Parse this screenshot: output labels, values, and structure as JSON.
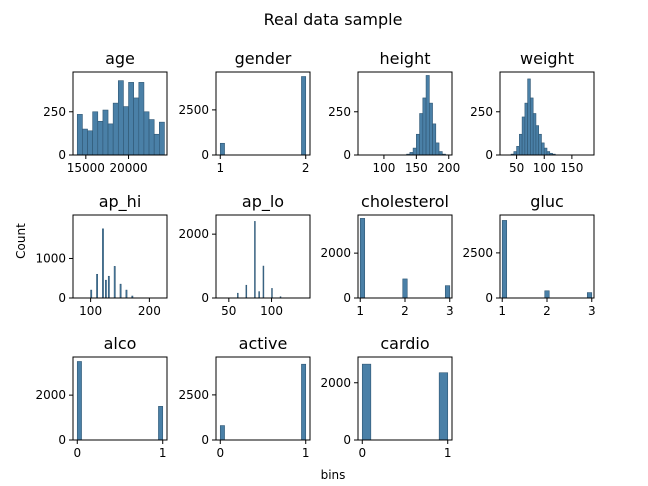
{
  "chart_data": {
    "type": "bar",
    "title": "Real data sample",
    "xlabel": "bins",
    "ylabel": "Count",
    "grid": false,
    "panels": [
      {
        "title": "age",
        "xlim": [
          13500,
          24500
        ],
        "ylim": [
          0,
          480
        ],
        "xticks": [
          {
            "v": 15000,
            "label": "15000"
          },
          {
            "v": 20000,
            "label": "20000"
          }
        ],
        "yticks": [
          {
            "v": 0,
            "label": "0"
          },
          {
            "v": 250,
            "label": "250"
          }
        ],
        "bins": [
          [
            14000,
            14600,
            235
          ],
          [
            14600,
            15200,
            150
          ],
          [
            15200,
            15800,
            140
          ],
          [
            15800,
            16400,
            250
          ],
          [
            16400,
            17000,
            195
          ],
          [
            17000,
            17600,
            260
          ],
          [
            17600,
            18200,
            180
          ],
          [
            18200,
            18800,
            300
          ],
          [
            18800,
            19400,
            430
          ],
          [
            19400,
            20000,
            280
          ],
          [
            20000,
            20600,
            420
          ],
          [
            20600,
            21200,
            330
          ],
          [
            21200,
            21800,
            420
          ],
          [
            21800,
            22400,
            250
          ],
          [
            22400,
            23000,
            205
          ],
          [
            23000,
            23600,
            120
          ],
          [
            23600,
            24200,
            190
          ]
        ]
      },
      {
        "title": "gender",
        "xlim": [
          0.95,
          2.05
        ],
        "ylim": [
          0,
          4600
        ],
        "xticks": [
          {
            "v": 1,
            "label": "1"
          },
          {
            "v": 2,
            "label": "2"
          }
        ],
        "yticks": [
          {
            "v": 0,
            "label": "0"
          },
          {
            "v": 2500,
            "label": "2500"
          }
        ],
        "bins": [
          [
            1.0,
            1.05,
            650
          ],
          [
            1.95,
            2.0,
            4350
          ]
        ]
      },
      {
        "title": "height",
        "xlim": [
          60,
          205
        ],
        "ylim": [
          0,
          480
        ],
        "xticks": [
          {
            "v": 100,
            "label": "100"
          },
          {
            "v": 150,
            "label": "150"
          },
          {
            "v": 200,
            "label": "200"
          }
        ],
        "yticks": [
          {
            "v": 0,
            "label": "0"
          },
          {
            "v": 250,
            "label": "250"
          }
        ],
        "bins": [
          [
            135,
            140,
            5
          ],
          [
            140,
            145,
            15
          ],
          [
            145,
            150,
            40
          ],
          [
            150,
            155,
            120
          ],
          [
            155,
            160,
            240
          ],
          [
            160,
            165,
            330
          ],
          [
            165,
            170,
            460
          ],
          [
            170,
            175,
            300
          ],
          [
            175,
            180,
            180
          ],
          [
            180,
            185,
            70
          ],
          [
            185,
            190,
            20
          ],
          [
            190,
            195,
            5
          ]
        ]
      },
      {
        "title": "weight",
        "xlim": [
          20,
          190
        ],
        "ylim": [
          0,
          480
        ],
        "xticks": [
          {
            "v": 50,
            "label": "50"
          },
          {
            "v": 100,
            "label": "100"
          },
          {
            "v": 150,
            "label": "150"
          }
        ],
        "yticks": [
          {
            "v": 0,
            "label": "0"
          },
          {
            "v": 250,
            "label": "250"
          }
        ],
        "bins": [
          [
            40,
            45,
            5
          ],
          [
            45,
            50,
            20
          ],
          [
            50,
            55,
            50
          ],
          [
            55,
            60,
            120
          ],
          [
            60,
            65,
            220
          ],
          [
            65,
            70,
            300
          ],
          [
            70,
            75,
            440
          ],
          [
            75,
            80,
            330
          ],
          [
            80,
            85,
            240
          ],
          [
            85,
            90,
            170
          ],
          [
            90,
            95,
            120
          ],
          [
            95,
            100,
            70
          ],
          [
            100,
            105,
            40
          ],
          [
            105,
            110,
            20
          ],
          [
            110,
            115,
            10
          ],
          [
            115,
            120,
            5
          ]
        ]
      },
      {
        "title": "ap_hi",
        "xlim": [
          70,
          230
        ],
        "ylim": [
          0,
          2100
        ],
        "xticks": [
          {
            "v": 100,
            "label": "100"
          },
          {
            "v": 200,
            "label": "200"
          }
        ],
        "yticks": [
          {
            "v": 0,
            "label": "0"
          },
          {
            "v": 1000,
            "label": "1000"
          }
        ],
        "bins": [
          [
            100,
            102,
            200
          ],
          [
            110,
            112,
            600
          ],
          [
            120,
            122,
            1750
          ],
          [
            125,
            127,
            450
          ],
          [
            130,
            132,
            550
          ],
          [
            140,
            142,
            800
          ],
          [
            150,
            152,
            350
          ],
          [
            160,
            162,
            200
          ],
          [
            170,
            172,
            50
          ]
        ]
      },
      {
        "title": "ap_lo",
        "xlim": [
          35,
          145
        ],
        "ylim": [
          0,
          2600
        ],
        "xticks": [
          {
            "v": 50,
            "label": "50"
          },
          {
            "v": 100,
            "label": "100"
          }
        ],
        "yticks": [
          {
            "v": 0,
            "label": "0"
          },
          {
            "v": 2000,
            "label": "2000"
          }
        ],
        "bins": [
          [
            60,
            61,
            150
          ],
          [
            70,
            71,
            400
          ],
          [
            80,
            81,
            2400
          ],
          [
            85,
            86,
            200
          ],
          [
            90,
            91,
            1000
          ],
          [
            100,
            101,
            300
          ],
          [
            110,
            111,
            40
          ]
        ]
      },
      {
        "title": "cholesterol",
        "xlim": [
          0.95,
          3.05
        ],
        "ylim": [
          0,
          3700
        ],
        "xticks": [
          {
            "v": 1,
            "label": "1"
          },
          {
            "v": 2,
            "label": "2"
          },
          {
            "v": 3,
            "label": "3"
          }
        ],
        "yticks": [
          {
            "v": 0,
            "label": "0"
          },
          {
            "v": 2000,
            "label": "2000"
          }
        ],
        "bins": [
          [
            1.0,
            1.1,
            3550
          ],
          [
            1.95,
            2.05,
            850
          ],
          [
            2.9,
            3.0,
            550
          ]
        ]
      },
      {
        "title": "gluc",
        "xlim": [
          0.95,
          3.05
        ],
        "ylim": [
          0,
          4600
        ],
        "xticks": [
          {
            "v": 1,
            "label": "1"
          },
          {
            "v": 2,
            "label": "2"
          },
          {
            "v": 3,
            "label": "3"
          }
        ],
        "yticks": [
          {
            "v": 0,
            "label": "0"
          },
          {
            "v": 2500,
            "label": "2500"
          }
        ],
        "bins": [
          [
            1.0,
            1.1,
            4300
          ],
          [
            1.95,
            2.05,
            400
          ],
          [
            2.9,
            3.0,
            300
          ]
        ]
      },
      {
        "title": "alco",
        "xlim": [
          -0.05,
          1.05
        ],
        "ylim": [
          0,
          3700
        ],
        "xticks": [
          {
            "v": 0,
            "label": "0"
          },
          {
            "v": 1,
            "label": "1"
          }
        ],
        "yticks": [
          {
            "v": 0,
            "label": "0"
          },
          {
            "v": 2000,
            "label": "2000"
          }
        ],
        "bins": [
          [
            0.0,
            0.05,
            3500
          ],
          [
            0.95,
            1.0,
            1500
          ]
        ]
      },
      {
        "title": "active",
        "xlim": [
          -0.05,
          1.05
        ],
        "ylim": [
          0,
          4600
        ],
        "xticks": [
          {
            "v": 0,
            "label": "0"
          },
          {
            "v": 1,
            "label": "1"
          }
        ],
        "yticks": [
          {
            "v": 0,
            "label": "0"
          },
          {
            "v": 2500,
            "label": "2500"
          }
        ],
        "bins": [
          [
            0.0,
            0.05,
            800
          ],
          [
            0.95,
            1.0,
            4200
          ]
        ]
      },
      {
        "title": "cardio",
        "xlim": [
          -0.05,
          1.05
        ],
        "ylim": [
          0,
          2900
        ],
        "xticks": [
          {
            "v": 0,
            "label": "0"
          },
          {
            "v": 1,
            "label": "1"
          }
        ],
        "yticks": [
          {
            "v": 0,
            "label": "0"
          },
          {
            "v": 2000,
            "label": "2000"
          }
        ],
        "bins": [
          [
            0.0,
            0.1,
            2650
          ],
          [
            0.9,
            1.0,
            2350
          ]
        ]
      }
    ]
  }
}
